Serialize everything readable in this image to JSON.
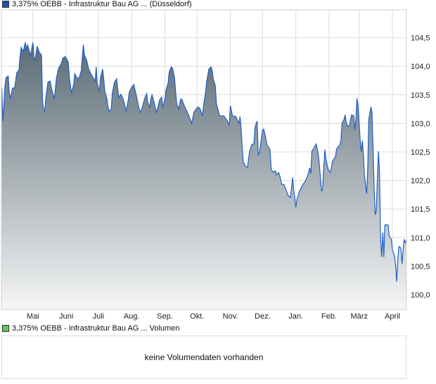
{
  "price_legend": {
    "label": "3,375% OEBB - Infrastruktur Bau AG ... (Düsseldorf)",
    "color": "#1f4fa6"
  },
  "volume_legend": {
    "label": "3,375% OEBB - Infrastruktur Bau AG ... Volumen",
    "color": "#5cc85c"
  },
  "volume_panel": {
    "message": "keine Volumendaten vorhanden"
  },
  "chart_data": {
    "type": "area",
    "title": "",
    "xlabel": "",
    "ylabel": "",
    "ylim": [
      99.72,
      104.96
    ],
    "grid": true,
    "line_color": "#1f5fc8",
    "fill_gradient": [
      "#5b6b75",
      "#f5f6f6"
    ],
    "y_ticks": [
      "100,0",
      "100,5",
      "101,0",
      "101,5",
      "102,0",
      "102,5",
      "103,0",
      "103,5",
      "104,0",
      "104,5"
    ],
    "y_tick_values": [
      100.0,
      100.5,
      101.0,
      101.5,
      102.0,
      102.5,
      103.0,
      103.5,
      104.0,
      104.5
    ],
    "x_ticks": [
      {
        "label": "Mai",
        "date": "01.05."
      },
      {
        "label": "Juni",
        "date": "01.06."
      },
      {
        "label": "Juli",
        "date": "01.07."
      },
      {
        "label": "Aug.",
        "date": "01.08."
      },
      {
        "label": "Sep.",
        "date": "01.09."
      },
      {
        "label": "Okt.",
        "date": "01.10."
      },
      {
        "label": "Nov.",
        "date": "01.11."
      },
      {
        "label": "Dez.",
        "date": "01.12."
      },
      {
        "label": "Jan.",
        "date": "01.01."
      },
      {
        "label": "Feb.",
        "date": "01.02."
      },
      {
        "label": "März",
        "date": "01.03."
      },
      {
        "label": "April",
        "date": "01.04."
      }
    ],
    "x": [
      "02.04.",
      "03.04.",
      "05.04.",
      "06.04.",
      "08.04.",
      "09.04.",
      "10.04.",
      "12.04.",
      "14.04.",
      "16.04.",
      "18.04.",
      "19.04.",
      "20.04.",
      "22.04.",
      "24.04.",
      "25.04.",
      "26.04.",
      "28.04.",
      "29.04.",
      "01.05.",
      "02.05.",
      "03.05.",
      "05.05.",
      "07.05.",
      "09.05.",
      "10.05.",
      "11.05.",
      "12.05.",
      "13.05.",
      "15.05.",
      "17.05.",
      "19.05.",
      "21.05.",
      "22.05.",
      "23.05.",
      "25.05.",
      "27.05.",
      "29.05.",
      "31.05.",
      "02.06.",
      "03.06.",
      "04.06.",
      "06.06.",
      "08.06.",
      "09.06.",
      "11.06.",
      "13.06.",
      "15.06.",
      "16.06.",
      "17.06.",
      "18.06.",
      "20.06.",
      "21.06.",
      "22.06.",
      "24.06.",
      "26.06.",
      "28.06.",
      "29.06.",
      "30.06.",
      "02.07.",
      "03.07.",
      "05.07.",
      "06.07.",
      "07.07.",
      "09.07.",
      "10.07.",
      "11.07.",
      "13.07.",
      "14.07.",
      "16.07.",
      "18.07.",
      "19.07.",
      "20.07.",
      "22.07.",
      "24.07.",
      "26.07.",
      "27.07.",
      "29.07.",
      "30.07.",
      "01.08.",
      "03.08.",
      "05.08.",
      "06.08.",
      "08.08.",
      "09.08.",
      "11.08.",
      "13.08.",
      "15.08.",
      "16.08.",
      "18.08.",
      "19.08.",
      "20.08.",
      "22.08.",
      "24.08.",
      "25.08.",
      "27.08.",
      "29.08.",
      "30.08.",
      "01.09.",
      "02.09.",
      "04.09.",
      "05.09.",
      "07.09.",
      "08.09.",
      "10.09.",
      "11.09.",
      "12.09.",
      "14.09.",
      "15.09.",
      "16.09.",
      "17.09.",
      "19.09.",
      "21.09.",
      "23.09.",
      "24.09.",
      "26.09.",
      "28.09.",
      "30.09.",
      "02.10.",
      "04.10.",
      "06.10.",
      "07.10.",
      "09.10.",
      "10.10.",
      "12.10.",
      "14.10.",
      "15.10.",
      "16.10.",
      "18.10.",
      "19.10.",
      "22.10.",
      "24.10.",
      "26.10.",
      "29.10.",
      "31.10.",
      "01.11.",
      "03.11.",
      "06.11.",
      "09.11.",
      "10.11.",
      "11.11.",
      "12.11.",
      "13.11.",
      "15.11.",
      "17.11.",
      "18.11.",
      "19.11.",
      "21.11.",
      "23.11.",
      "24.11.",
      "25.11.",
      "26.11.",
      "27.11.",
      "28.11.",
      "01.12.",
      "02.12.",
      "04.12.",
      "05.12.",
      "08.12.",
      "09.12.",
      "11.12.",
      "13.12.",
      "14.12.",
      "16.12.",
      "17.12.",
      "19.12.",
      "21.12.",
      "23.12.",
      "25.12.",
      "27.12.",
      "29.12.",
      "30.12.",
      "01.01.",
      "02.01.",
      "04.01.",
      "06.01.",
      "08.01.",
      "10.01.",
      "12.01.",
      "14.01.",
      "15.01.",
      "16.01.",
      "18.01.",
      "20.01.",
      "22.01.",
      "23.01.",
      "25.01.",
      "26.01.",
      "27.01.",
      "28.01.",
      "29.01.",
      "31.01.",
      "02.02.",
      "03.02.",
      "04.02.",
      "06.02.",
      "07.02.",
      "08.02.",
      "10.02.",
      "11.02.",
      "12.02.",
      "13.02.",
      "15.02.",
      "16.02.",
      "17.02.",
      "19.02.",
      "20.02.",
      "21.02.",
      "22.02.",
      "24.02.",
      "25.02.",
      "26.02.",
      "27.02.",
      "28.02.",
      "02.03.",
      "03.03.",
      "04.03.",
      "05.03.",
      "06.03.",
      "08.03.",
      "09.03.",
      "10.03.",
      "12.03.",
      "13.03.",
      "14.03.",
      "15.03.",
      "16.03.",
      "17.03.",
      "18.03.",
      "19.03.",
      "20.03.",
      "21.03.",
      "22.03.",
      "23.03.",
      "24.03.",
      "25.03.",
      "27.03.",
      "28.03.",
      "29.03.",
      "31.03.",
      "01.04.",
      "02.04.",
      "03.04.",
      "04.04.",
      "05.04.",
      "06.04.",
      "07.04.",
      "08.04.",
      "09.04.",
      "10.04.",
      "11.04.",
      "12.04.",
      "13.04.",
      "14.04."
    ],
    "values": [
      103.62,
      103.04,
      103.65,
      103.8,
      103.83,
      103.53,
      103.43,
      103.62,
      103.62,
      103.89,
      103.93,
      104.17,
      104.33,
      104.26,
      104.42,
      104.27,
      104.38,
      104.24,
      104.2,
      104.42,
      104.15,
      104.11,
      104.35,
      104.24,
      104.2,
      103.37,
      103.25,
      103.21,
      103.43,
      103.72,
      103.74,
      103.56,
      103.43,
      103.62,
      103.8,
      103.97,
      104.03,
      104.14,
      104.17,
      104.11,
      104.07,
      103.8,
      103.53,
      103.68,
      103.87,
      103.8,
      103.79,
      103.92,
      104.15,
      104.38,
      104.2,
      104.11,
      104.03,
      103.95,
      103.87,
      103.8,
      103.74,
      103.99,
      103.69,
      103.56,
      103.8,
      103.95,
      103.78,
      103.56,
      103.43,
      103.29,
      103.21,
      103.25,
      103.53,
      103.72,
      103.78,
      103.62,
      103.45,
      103.51,
      103.43,
      103.29,
      103.21,
      103.43,
      103.56,
      103.63,
      103.68,
      103.52,
      103.43,
      103.25,
      103.19,
      103.28,
      103.43,
      103.52,
      103.37,
      103.28,
      103.43,
      103.5,
      103.37,
      103.19,
      103.25,
      103.41,
      103.46,
      103.28,
      103.43,
      103.58,
      103.71,
      103.9,
      103.99,
      103.97,
      103.8,
      103.56,
      103.34,
      103.25,
      103.37,
      103.43,
      103.41,
      103.31,
      103.23,
      103.15,
      103.1,
      103.0,
      103.19,
      103.25,
      103.29,
      103.25,
      103.13,
      103.31,
      103.56,
      103.74,
      103.95,
      103.99,
      103.93,
      103.78,
      103.66,
      103.35,
      103.13,
      103.13,
      103.13,
      103.05,
      102.97,
      103.31,
      103.13,
      103.12,
      103.0,
      103.12,
      102.94,
      102.57,
      102.33,
      102.25,
      102.23,
      102.39,
      102.51,
      102.63,
      102.64,
      102.93,
      103.0,
      103.04,
      102.45,
      102.48,
      102.88,
      102.9,
      102.75,
      102.63,
      102.54,
      102.2,
      102.14,
      102.17,
      102.1,
      102.14,
      102.08,
      101.93,
      101.93,
      101.83,
      101.73,
      101.7,
      102.05,
      101.83,
      101.53,
      101.66,
      101.79,
      101.87,
      101.94,
      101.99,
      102.08,
      102.22,
      102.12,
      102.51,
      102.57,
      102.64,
      102.45,
      102.26,
      101.81,
      101.86,
      102.2,
      102.54,
      102.39,
      102.2,
      102.14,
      102.2,
      102.33,
      102.39,
      102.42,
      102.55,
      102.6,
      102.62,
      102.7,
      103.0,
      103.07,
      103.15,
      103.0,
      102.94,
      102.96,
      103.07,
      103.15,
      103.13,
      102.88,
      103.07,
      103.44,
      103.31,
      102.7,
      102.5,
      102.7,
      102.45,
      102.08,
      101.77,
      102.2,
      103.07,
      103.29,
      103.19,
      102.57,
      101.83,
      101.4,
      101.46,
      102.02,
      102.51,
      102.14,
      100.97,
      100.66,
      101.09,
      100.66,
      101.22,
      101.22,
      101.22,
      101.03,
      100.97,
      100.79,
      100.73,
      100.66,
      100.5,
      100.23,
      100.6,
      100.84,
      100.84,
      100.79,
      100.54,
      100.79,
      100.97,
      100.91,
      100.95
    ]
  }
}
